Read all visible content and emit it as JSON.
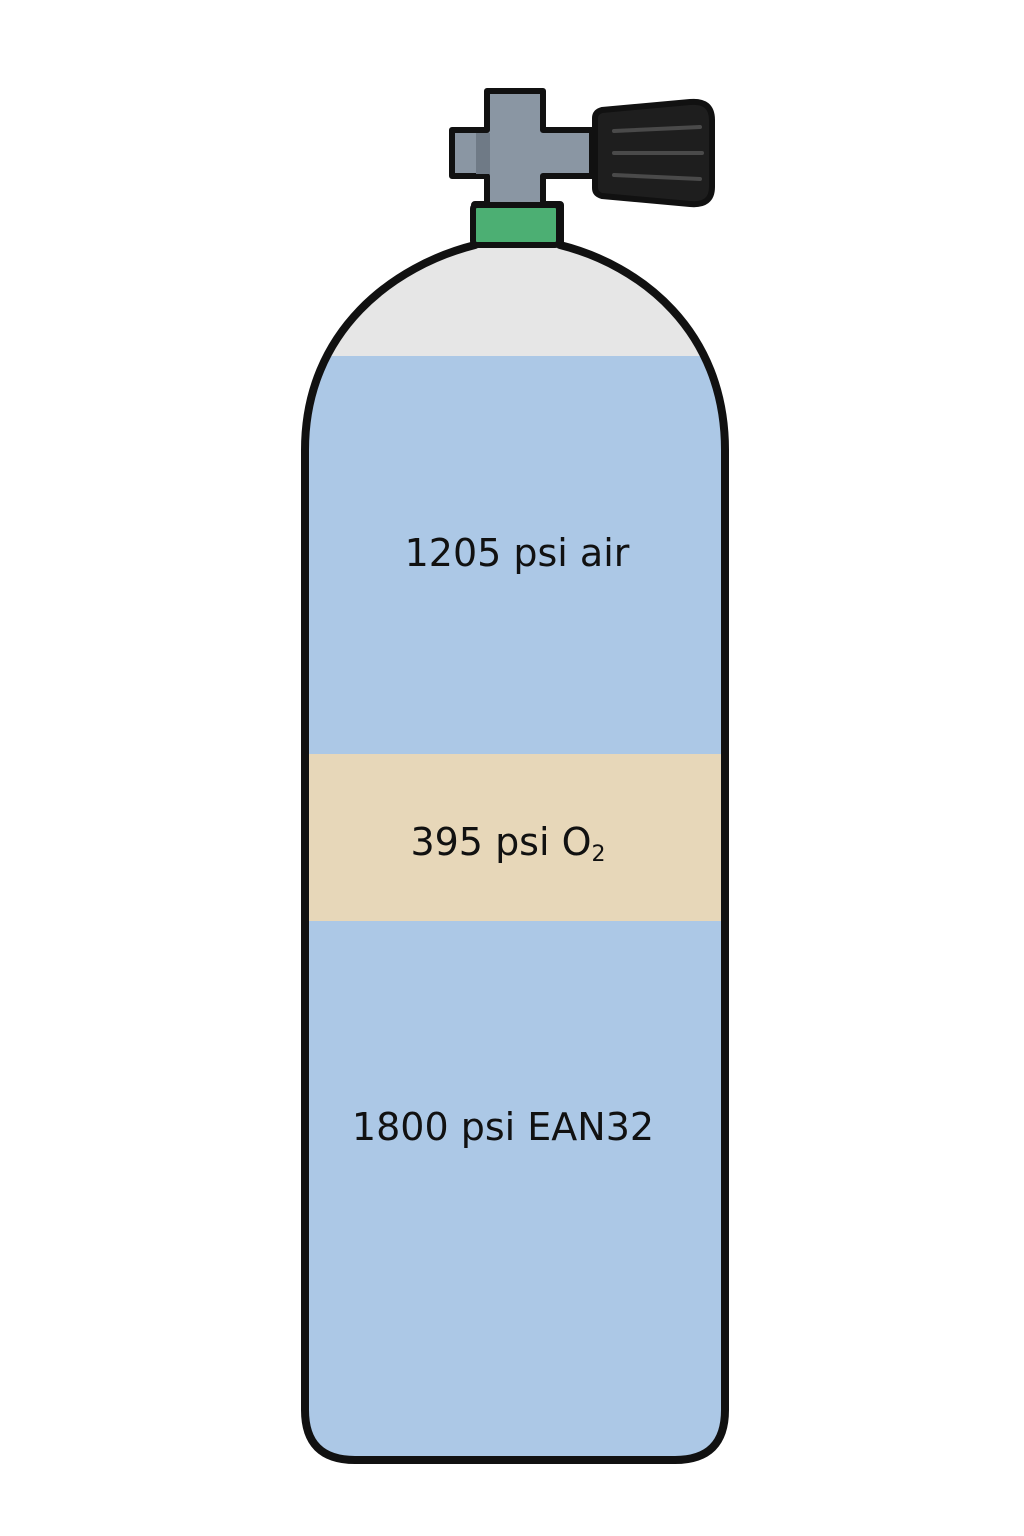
{
  "diagram": {
    "layers": [
      {
        "id": "top",
        "label": "1205 psi air",
        "subscript": "",
        "color": "#acc8e6"
      },
      {
        "id": "middle",
        "label": "395 psi O",
        "subscript": "2",
        "color": "#e7d7b9"
      },
      {
        "id": "bottom",
        "label": "1800 psi EAN32",
        "subscript": "",
        "color": "#acc8e6"
      }
    ],
    "colors": {
      "empty_space": "#e6e6e6",
      "outline": "#111111",
      "valve_body": "#8a96a3",
      "valve_shadow": "#6f7a86",
      "knob": "#1e1e1e",
      "neck_ring": "#4caf73"
    }
  }
}
